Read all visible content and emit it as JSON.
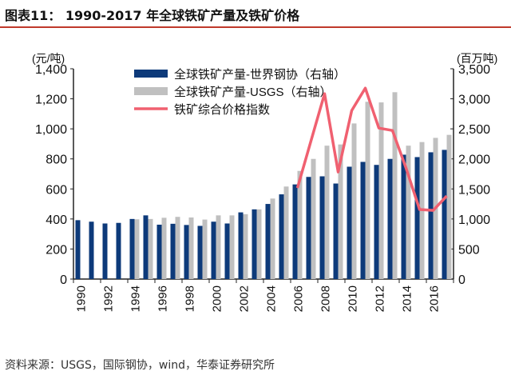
{
  "chart_data": {
    "type": "bar",
    "title": "图表11： 1990-2017 年全球铁矿产量及铁矿价格",
    "source": "资料来源：USGS，国际钢协，wind，华泰证券研究所",
    "ylabel_left": "(元/吨)",
    "ylabel_right": "(百万吨)",
    "ylim_left": [
      0,
      1400
    ],
    "ylim_right": [
      0,
      3500
    ],
    "yticks_left": [
      "0",
      "200",
      "400",
      "600",
      "800",
      "1,000",
      "1,200",
      "1,400"
    ],
    "yticks_right": [
      "0",
      "500",
      "1,000",
      "1,500",
      "2,000",
      "2,500",
      "3,000",
      "3,500"
    ],
    "categories": [
      1990,
      1991,
      1992,
      1993,
      1994,
      1995,
      1996,
      1997,
      1998,
      1999,
      2000,
      2001,
      2002,
      2003,
      2004,
      2005,
      2006,
      2007,
      2008,
      2009,
      2010,
      2011,
      2012,
      2013,
      2014,
      2015,
      2016,
      2017
    ],
    "xtick_labels": [
      "1990",
      "1992",
      "1994",
      "1996",
      "1998",
      "2000",
      "2002",
      "2004",
      "2006",
      "2008",
      "2010",
      "2012",
      "2014",
      "2016"
    ],
    "legend_position": "top-left",
    "series": [
      {
        "name": "全球铁矿产量-世界钢协（右轴）",
        "type": "bar",
        "axis": "right",
        "color": "#0d3a7a",
        "values": [
          980,
          955,
          925,
          935,
          1000,
          1060,
          905,
          920,
          900,
          885,
          955,
          925,
          1110,
          1160,
          1250,
          1410,
          1575,
          1700,
          1710,
          1590,
          1870,
          1950,
          1900,
          2000,
          2070,
          2030,
          2110,
          2150
        ]
      },
      {
        "name": "全球铁矿产量-USGS（右轴）",
        "type": "bar",
        "axis": "right",
        "color": "#c0c0c0",
        "values": [
          null,
          null,
          null,
          null,
          995,
          1000,
          1020,
          1035,
          1025,
          990,
          1060,
          1060,
          1080,
          1160,
          1340,
          1540,
          1800,
          2000,
          2220,
          2240,
          2590,
          2950,
          2940,
          3110,
          2220,
          2280,
          2350,
          2400
        ]
      },
      {
        "name": "铁矿综合价格指数",
        "type": "line",
        "axis": "left",
        "color": "#f06070",
        "values": [
          null,
          null,
          null,
          null,
          null,
          null,
          null,
          null,
          null,
          null,
          null,
          null,
          null,
          null,
          null,
          null,
          606,
          920,
          1234,
          713,
          1122,
          1271,
          1005,
          989,
          740,
          463,
          457,
          553
        ]
      }
    ]
  }
}
